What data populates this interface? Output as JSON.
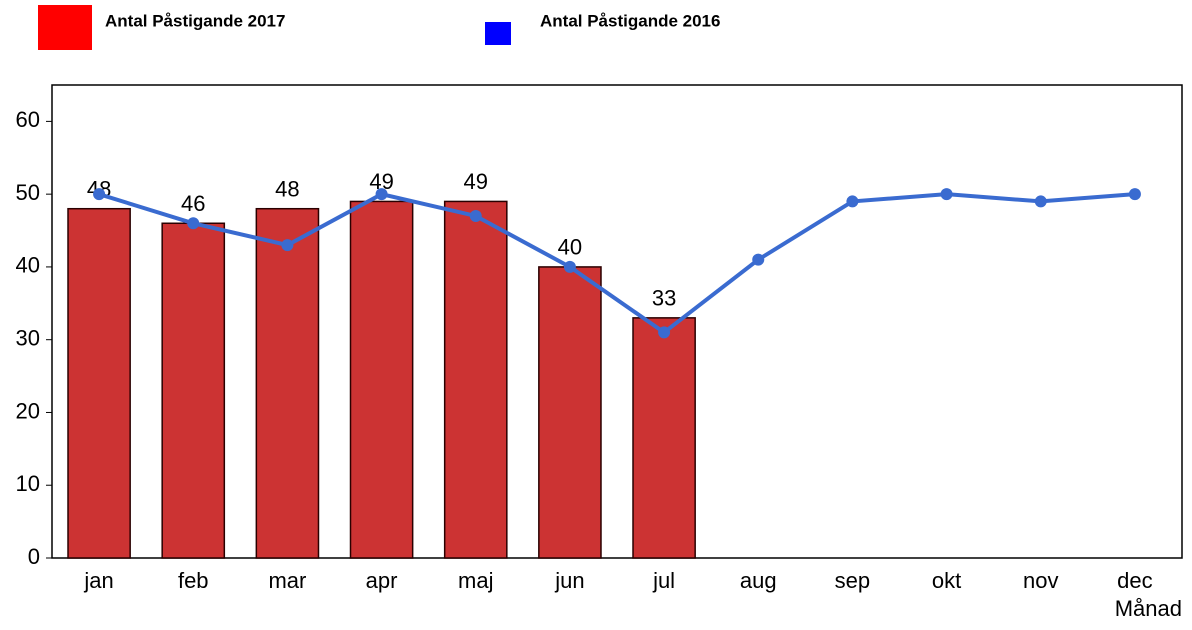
{
  "chart_data": {
    "type": "bar_line",
    "x_label": "Månad",
    "categories": [
      "jan",
      "feb",
      "mar",
      "apr",
      "maj",
      "jun",
      "jul",
      "aug",
      "sep",
      "okt",
      "nov",
      "dec"
    ],
    "series": [
      {
        "name": "Antal Påstigande 2017",
        "type": "bar",
        "color": "#cc3333",
        "legend_color": "#ff0000",
        "values": [
          48,
          46,
          48,
          49,
          49,
          40,
          33,
          null,
          null,
          null,
          null,
          null
        ],
        "show_value_labels": true
      },
      {
        "name": "Antal Påstigande 2016",
        "type": "line",
        "color": "#3a6bd0",
        "legend_color": "#0000ff",
        "values": [
          50,
          46,
          43,
          50,
          47,
          40,
          31,
          41,
          49,
          50,
          49,
          50
        ]
      }
    ],
    "ylim": [
      0,
      65
    ],
    "yticks": [
      0,
      10,
      20,
      30,
      40,
      50,
      60
    ],
    "grid": false
  }
}
